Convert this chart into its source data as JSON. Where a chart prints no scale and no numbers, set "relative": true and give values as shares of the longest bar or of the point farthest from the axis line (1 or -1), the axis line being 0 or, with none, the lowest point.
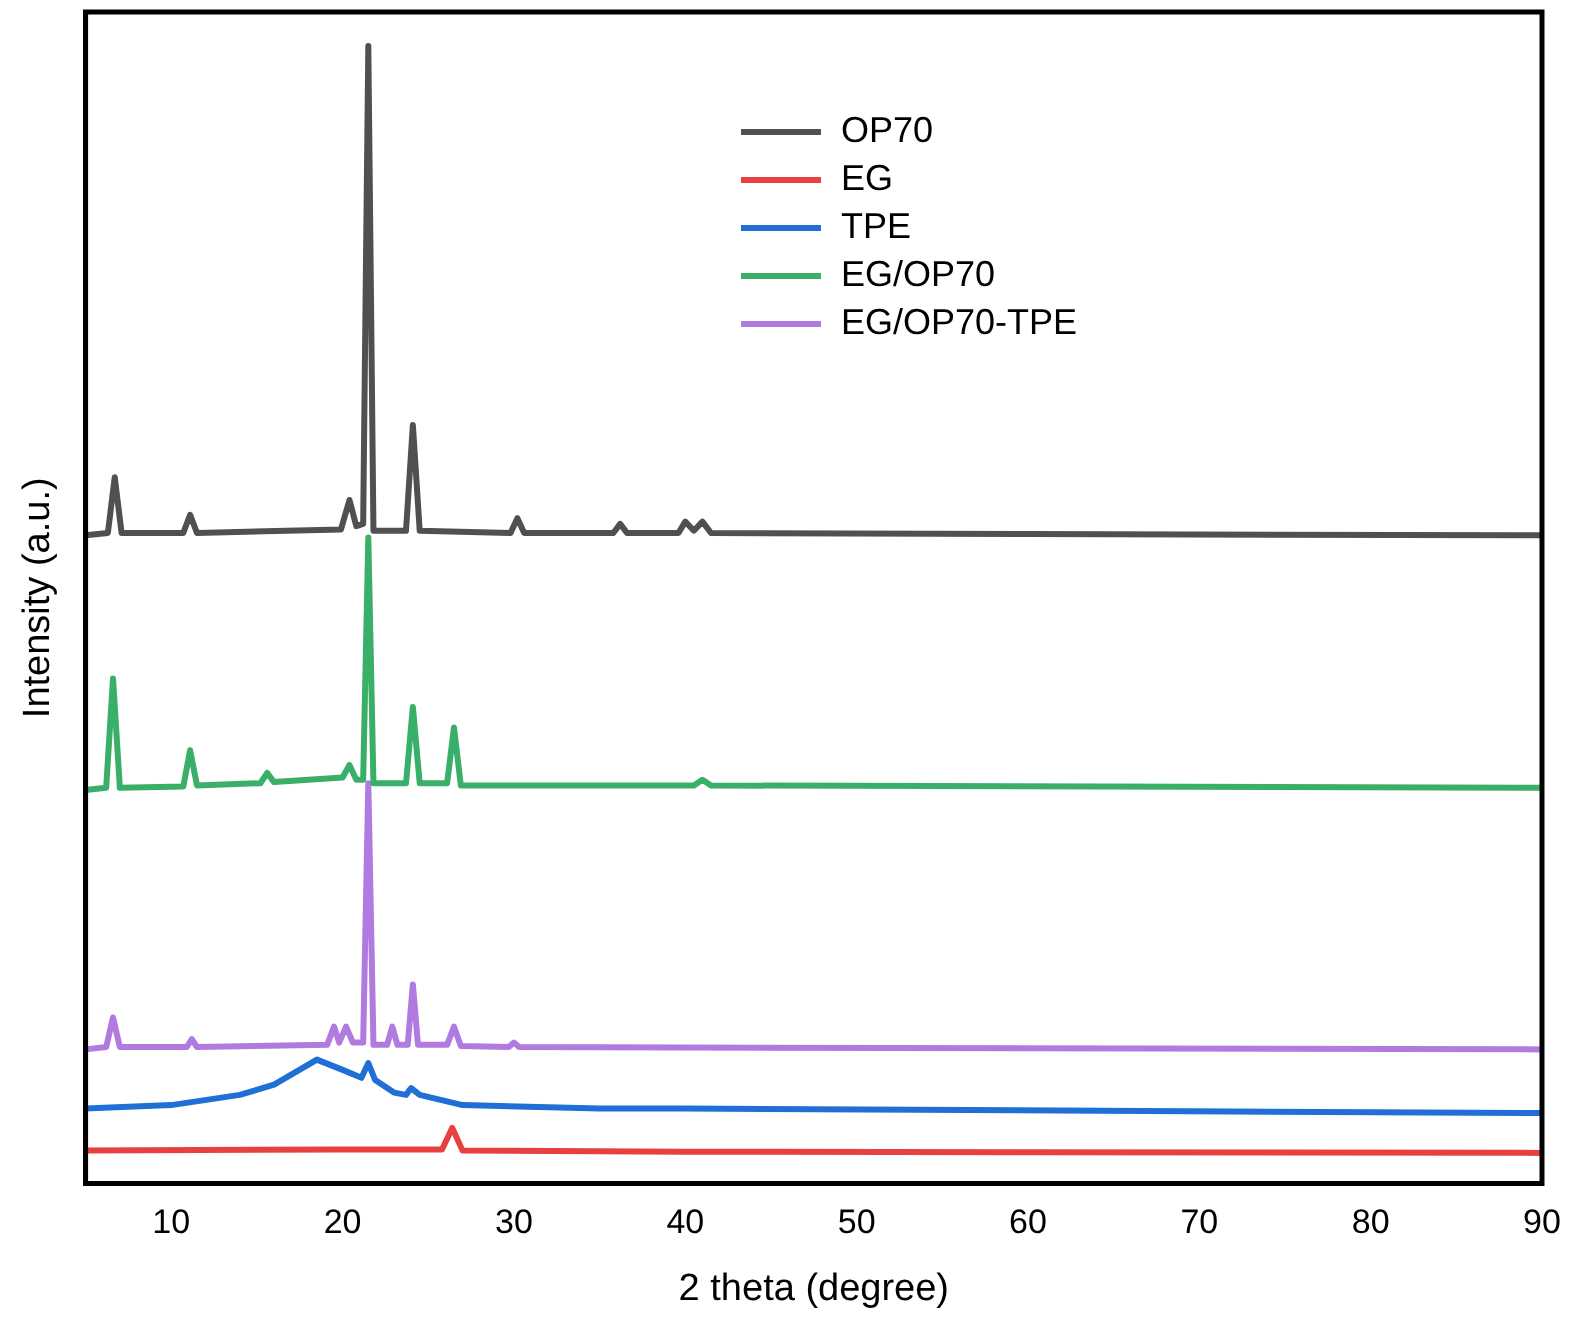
{
  "chart_data": {
    "type": "line",
    "relative": true,
    "xlabel": "2 theta (degree)",
    "ylabel": "Intensity (a.u.)",
    "xlim": [
      5,
      90
    ],
    "xticks": [
      10,
      20,
      30,
      40,
      50,
      60,
      70,
      80,
      90
    ],
    "legend": "top",
    "grid": false,
    "marker": "none",
    "line_style": "solid",
    "series": [
      {
        "name": "OP70",
        "color": "#505050",
        "x": [
          5,
          6.3,
          6.7,
          7.1,
          10.7,
          11.1,
          11.5,
          19.9,
          20.4,
          20.8,
          21.2,
          21.5,
          21.8,
          23.7,
          24.1,
          24.5,
          29.8,
          30.2,
          30.6,
          35.8,
          36.2,
          36.6,
          39.6,
          40,
          40.5,
          41,
          41.5,
          60,
          90
        ],
        "values": [
          0.57,
          0.572,
          0.621,
          0.572,
          0.572,
          0.588,
          0.572,
          0.575,
          0.601,
          0.578,
          0.58,
          1.0,
          0.574,
          0.574,
          0.667,
          0.574,
          0.572,
          0.585,
          0.572,
          0.572,
          0.58,
          0.572,
          0.572,
          0.582,
          0.574,
          0.582,
          0.572,
          0.571,
          0.57
        ]
      },
      {
        "name": "EG",
        "color": "#e84040",
        "x": [
          5,
          20,
          25.8,
          26.4,
          27,
          40,
          90
        ],
        "values": [
          0.029,
          0.03,
          0.03,
          0.049,
          0.029,
          0.028,
          0.027
        ]
      },
      {
        "name": "TPE",
        "color": "#1f6fd6",
        "x": [
          5,
          10,
          14,
          16,
          18.5,
          20,
          21.1,
          21.5,
          21.9,
          23,
          23.7,
          24,
          24.5,
          27,
          35,
          40,
          90
        ],
        "values": [
          0.066,
          0.069,
          0.078,
          0.087,
          0.109,
          0.1,
          0.093,
          0.106,
          0.091,
          0.08,
          0.078,
          0.084,
          0.078,
          0.069,
          0.066,
          0.066,
          0.062
        ]
      },
      {
        "name": "EG/OP70",
        "color": "#3aaf6a",
        "x": [
          5,
          6.2,
          6.6,
          7,
          10.7,
          11.1,
          11.5,
          15.2,
          15.6,
          16,
          20,
          20.4,
          20.8,
          21.2,
          21.5,
          21.8,
          23.7,
          24.1,
          24.5,
          26.1,
          26.5,
          26.9,
          40.5,
          41,
          41.5,
          90
        ],
        "values": [
          0.346,
          0.348,
          0.444,
          0.348,
          0.349,
          0.381,
          0.35,
          0.352,
          0.361,
          0.353,
          0.357,
          0.368,
          0.355,
          0.355,
          0.568,
          0.352,
          0.352,
          0.419,
          0.352,
          0.352,
          0.401,
          0.35,
          0.35,
          0.355,
          0.35,
          0.348
        ]
      },
      {
        "name": "EG/OP70-TPE",
        "color": "#b07ae0",
        "x": [
          5,
          6.2,
          6.6,
          7,
          10.9,
          11.2,
          11.5,
          19.1,
          19.5,
          19.8,
          20.2,
          20.6,
          21.2,
          21.5,
          21.8,
          22.6,
          22.9,
          23.2,
          23.8,
          24.1,
          24.4,
          26.1,
          26.5,
          26.9,
          29.7,
          30,
          30.3,
          90
        ],
        "values": [
          0.118,
          0.12,
          0.146,
          0.12,
          0.12,
          0.127,
          0.12,
          0.122,
          0.138,
          0.124,
          0.138,
          0.124,
          0.124,
          0.352,
          0.122,
          0.122,
          0.138,
          0.122,
          0.122,
          0.175,
          0.122,
          0.122,
          0.138,
          0.121,
          0.12,
          0.124,
          0.12,
          0.118
        ]
      }
    ]
  }
}
